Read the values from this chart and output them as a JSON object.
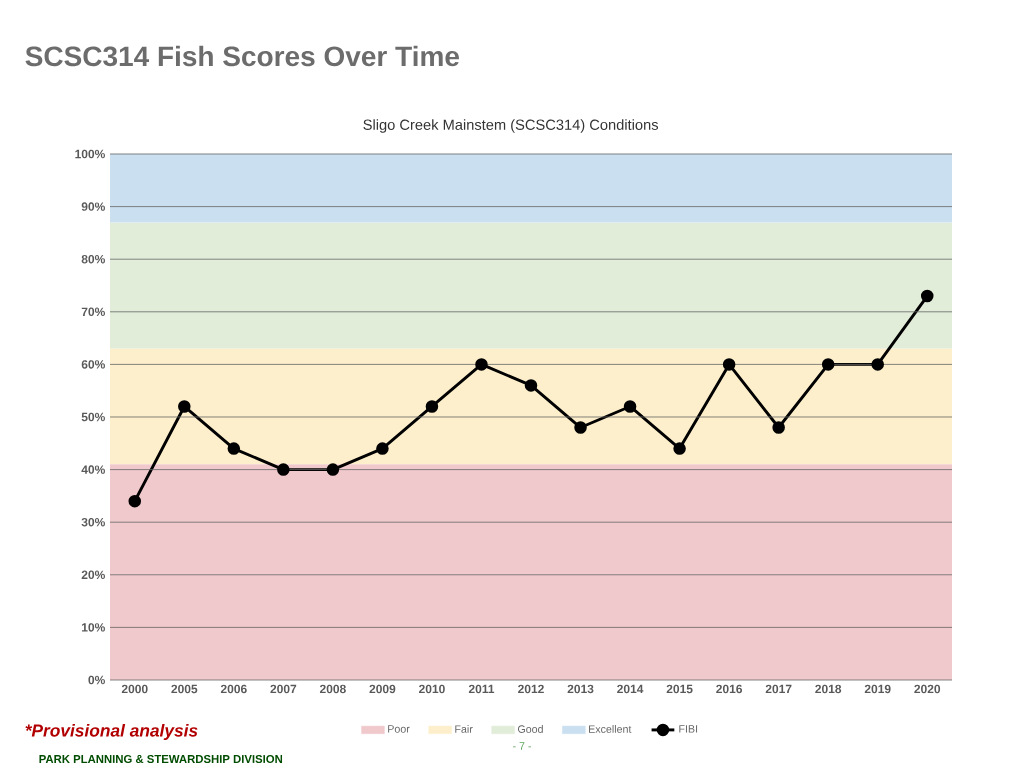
{
  "chart_data": {
    "type": "line",
    "title": "SCSC314 Fish Scores Over Time",
    "subtitle": "Sligo Creek Mainstem (SCSC314) Conditions",
    "categories": [
      "2000",
      "2005",
      "2006",
      "2007",
      "2008",
      "2009",
      "2010",
      "2011",
      "2012",
      "2013",
      "2014",
      "2015",
      "2016",
      "2017",
      "2018",
      "2019",
      "2020"
    ],
    "series": [
      {
        "name": "FIBI",
        "color": "#000000",
        "values": [
          34,
          52,
          44,
          40,
          40,
          44,
          52,
          60,
          56,
          48,
          52,
          44,
          60,
          48,
          60,
          60,
          73
        ]
      }
    ],
    "ylim": [
      0,
      100
    ],
    "yticks": [
      {
        "value": 0,
        "label": "0%"
      },
      {
        "value": 10,
        "label": "10%"
      },
      {
        "value": 20,
        "label": "20%"
      },
      {
        "value": 30,
        "label": "30%"
      },
      {
        "value": 40,
        "label": "40%"
      },
      {
        "value": 50,
        "label": "50%"
      },
      {
        "value": 60,
        "label": "60%"
      },
      {
        "value": 70,
        "label": "70%"
      },
      {
        "value": 80,
        "label": "80%"
      },
      {
        "value": 90,
        "label": "90%"
      },
      {
        "value": 100,
        "label": "100%"
      }
    ],
    "bands": [
      {
        "axis": "y",
        "from": 0,
        "to": 41,
        "label": "Poor",
        "color": "#f0c9cc"
      },
      {
        "axis": "y",
        "from": 41,
        "to": 63,
        "label": "Fair",
        "color": "#fdefcb"
      },
      {
        "axis": "y",
        "from": 63,
        "to": 87,
        "label": "Good",
        "color": "#e2edd9"
      },
      {
        "axis": "y",
        "from": 87,
        "to": 100,
        "label": "Excellent",
        "color": "#cadff0"
      }
    ],
    "grid": "y",
    "legend": "bottom",
    "marker": "circle",
    "line_style": "solid",
    "annotations": [
      "*Provisional analysis",
      "PARK PLANNING & STEWARDSHIP DIVISION",
      "- 7 -"
    ]
  }
}
